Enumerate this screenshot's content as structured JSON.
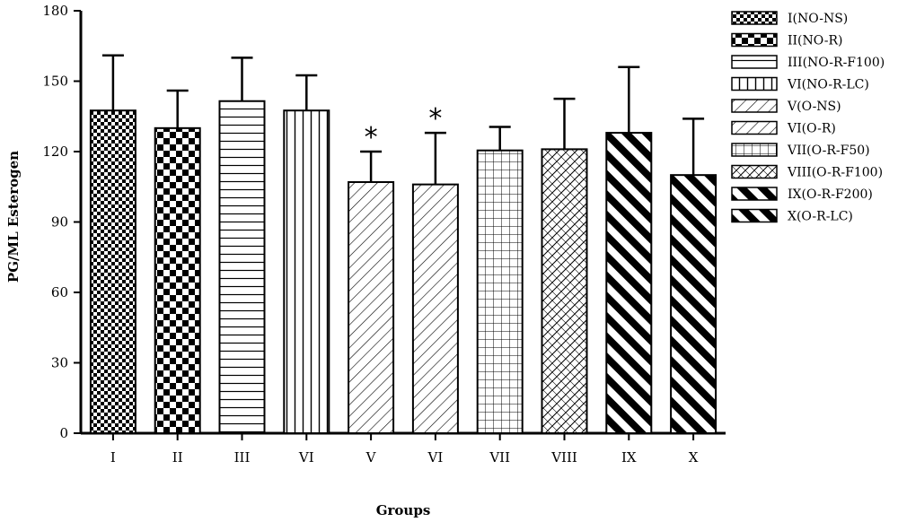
{
  "chart_data": {
    "type": "bar",
    "xlabel": "Groups",
    "ylabel": "PG/ML Esterogen",
    "ylim": [
      0,
      180
    ],
    "yticks": [
      0,
      30,
      60,
      90,
      120,
      150,
      180
    ],
    "grid": false,
    "legend_position": "right",
    "categories": [
      "I",
      "II",
      "III",
      "VI",
      "V",
      "VI",
      "VII",
      "VIII",
      "IX",
      "X"
    ],
    "values": [
      137.5,
      130,
      141.5,
      137.5,
      107,
      106,
      120.5,
      121,
      128,
      110
    ],
    "error_upper": [
      23.5,
      16,
      18.5,
      15,
      13,
      22,
      10,
      21.5,
      28,
      24
    ],
    "significance": [
      "",
      "",
      "",
      "",
      "*",
      "*",
      "",
      "",
      "",
      ""
    ],
    "legend": [
      "I(NO-NS)",
      "II(NO-R)",
      "III(NO-R-F100)",
      "VI(NO-R-LC)",
      "V(O-NS)",
      "VI(O-R)",
      "VII(O-R-F50)",
      "VIII(O-R-F100)",
      "IX(O-R-F200)",
      "X(O-R-LC)"
    ],
    "patterns": [
      "checker-fine",
      "checker-bold",
      "horizontal-lines",
      "vertical-lines",
      "diagonal-fine",
      "diagonal-fine",
      "grid",
      "cross-diagonal",
      "diagonal-bold",
      "diagonal-bold"
    ]
  }
}
